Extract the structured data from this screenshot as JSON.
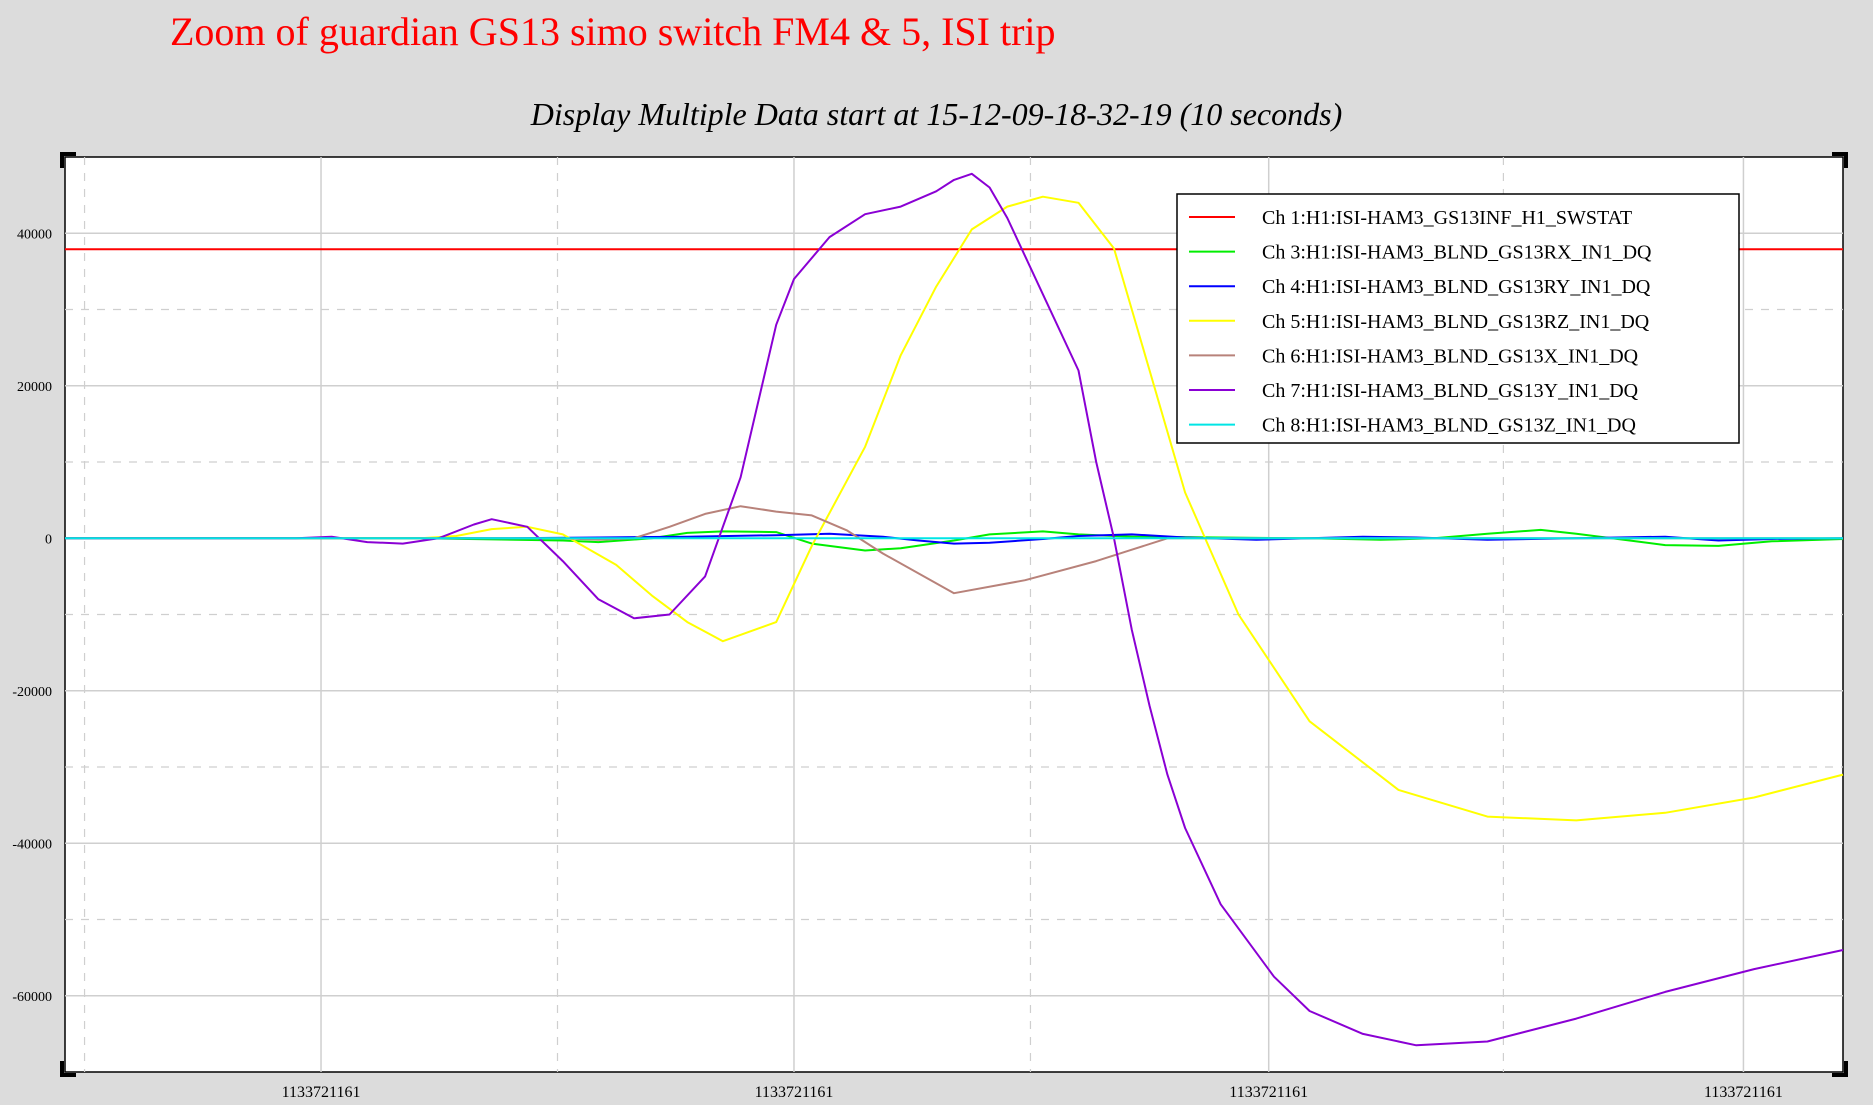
{
  "annotation": "Zoom of guardian GS13 simo switch FM4 & 5, ISI trip",
  "chart_data": {
    "type": "line",
    "title": "Display Multiple Data start at 15-12-09-18-32-19 (10 seconds)",
    "xlabel": "",
    "ylabel": "",
    "x_range": [
      0,
      1
    ],
    "ylim": [
      -70000,
      50000
    ],
    "y_ticks": [
      40000,
      20000,
      0,
      -20000,
      -40000,
      -60000
    ],
    "y_tick_labels": [
      "40000",
      "20000",
      "0",
      "-20000",
      "-40000",
      "-60000"
    ],
    "x_ticks": [
      0.144,
      0.41,
      0.677,
      0.944
    ],
    "x_tick_labels": [
      "1133721161",
      "1133721161",
      "1133721161",
      "1133721161"
    ],
    "grid": true,
    "legend_position": "top-right",
    "series": [
      {
        "name": "Ch 1:H1:ISI-HAM3_GS13INF_H1_SWSTAT",
        "color": "#ff0000",
        "x": [
          0,
          1
        ],
        "y": [
          37900,
          37900
        ]
      },
      {
        "name": "Ch 3:H1:ISI-HAM3_BLND_GS13RX_IN1_DQ",
        "color": "#00ee00",
        "x": [
          0,
          0.2,
          0.28,
          0.3,
          0.33,
          0.35,
          0.37,
          0.4,
          0.42,
          0.45,
          0.47,
          0.5,
          0.52,
          0.55,
          0.57,
          0.6,
          0.65,
          0.7,
          0.74,
          0.77,
          0.8,
          0.83,
          0.85,
          0.88,
          0.9,
          0.93,
          0.96,
          1
        ],
        "y": [
          0,
          0,
          -300,
          -500,
          0,
          700,
          900,
          800,
          -700,
          -1600,
          -1300,
          -300,
          500,
          900,
          500,
          200,
          100,
          0,
          -200,
          0,
          600,
          1100,
          600,
          -300,
          -900,
          -1000,
          -400,
          -100
        ]
      },
      {
        "name": "Ch 4:H1:ISI-HAM3_BLND_GS13RY_IN1_DQ",
        "color": "#0000ff",
        "x": [
          0,
          0.25,
          0.3,
          0.35,
          0.4,
          0.43,
          0.46,
          0.48,
          0.5,
          0.52,
          0.55,
          0.57,
          0.6,
          0.63,
          0.67,
          0.7,
          0.73,
          0.76,
          0.8,
          0.85,
          0.9,
          0.93,
          0.96,
          1
        ],
        "y": [
          0,
          0,
          100,
          200,
          400,
          600,
          200,
          -300,
          -700,
          -600,
          -100,
          300,
          500,
          100,
          -200,
          0,
          200,
          100,
          -200,
          0,
          200,
          -300,
          -100,
          0
        ]
      },
      {
        "name": "Ch 5:H1:ISI-HAM3_BLND_GS13RZ_IN1_DQ",
        "color": "#ffff00",
        "x": [
          0,
          0.2,
          0.22,
          0.24,
          0.26,
          0.28,
          0.31,
          0.33,
          0.35,
          0.37,
          0.4,
          0.42,
          0.45,
          0.47,
          0.49,
          0.51,
          0.53,
          0.55,
          0.57,
          0.59,
          0.6,
          0.61,
          0.63,
          0.66,
          0.7,
          0.75,
          0.8,
          0.85,
          0.9,
          0.95,
          1
        ],
        "y": [
          0,
          0,
          300,
          1200,
          1500,
          500,
          -3500,
          -7500,
          -11000,
          -13500,
          -11000,
          -1000,
          12000,
          24000,
          33000,
          40500,
          43500,
          44800,
          44000,
          38000,
          30000,
          22000,
          6000,
          -10000,
          -24000,
          -33000,
          -36500,
          -37000,
          -36000,
          -34000,
          -31000
        ]
      },
      {
        "name": "Ch 6:H1:ISI-HAM3_BLND_GS13X_IN1_DQ",
        "color": "#b8827a",
        "x": [
          0,
          0.25,
          0.28,
          0.3,
          0.32,
          0.34,
          0.36,
          0.38,
          0.4,
          0.42,
          0.44,
          0.46,
          0.5,
          0.54,
          0.58,
          0.6,
          0.62,
          0.65,
          0.7,
          1
        ],
        "y": [
          0,
          0,
          0,
          -200,
          0,
          1500,
          3200,
          4200,
          3500,
          3000,
          1000,
          -2000,
          -7200,
          -5500,
          -3000,
          -1500,
          0,
          0,
          0,
          0
        ]
      },
      {
        "name": "Ch 7:H1:ISI-HAM3_BLND_GS13Y_IN1_DQ",
        "color": "#8a00d4",
        "x": [
          0,
          0.13,
          0.15,
          0.17,
          0.19,
          0.21,
          0.23,
          0.24,
          0.26,
          0.28,
          0.3,
          0.32,
          0.34,
          0.36,
          0.38,
          0.4,
          0.41,
          0.43,
          0.45,
          0.47,
          0.49,
          0.5,
          0.51,
          0.52,
          0.53,
          0.55,
          0.57,
          0.58,
          0.59,
          0.6,
          0.61,
          0.62,
          0.63,
          0.65,
          0.68,
          0.7,
          0.73,
          0.76,
          0.8,
          0.85,
          0.9,
          0.95,
          1
        ],
        "y": [
          0,
          0,
          200,
          -500,
          -700,
          0,
          1800,
          2500,
          1500,
          -3000,
          -8000,
          -10500,
          -10000,
          -5000,
          8000,
          28000,
          34000,
          39500,
          42500,
          43500,
          45500,
          47000,
          47800,
          46000,
          42000,
          32000,
          22000,
          10000,
          0,
          -12000,
          -22000,
          -31000,
          -38000,
          -48000,
          -57500,
          -62000,
          -65000,
          -66500,
          -66000,
          -63000,
          -59500,
          -56500,
          -54000
        ]
      },
      {
        "name": "Ch 8:H1:ISI-HAM3_BLND_GS13Z_IN1_DQ",
        "color": "#00e5e5",
        "x": [
          0,
          1
        ],
        "y": [
          0,
          0
        ]
      }
    ]
  }
}
